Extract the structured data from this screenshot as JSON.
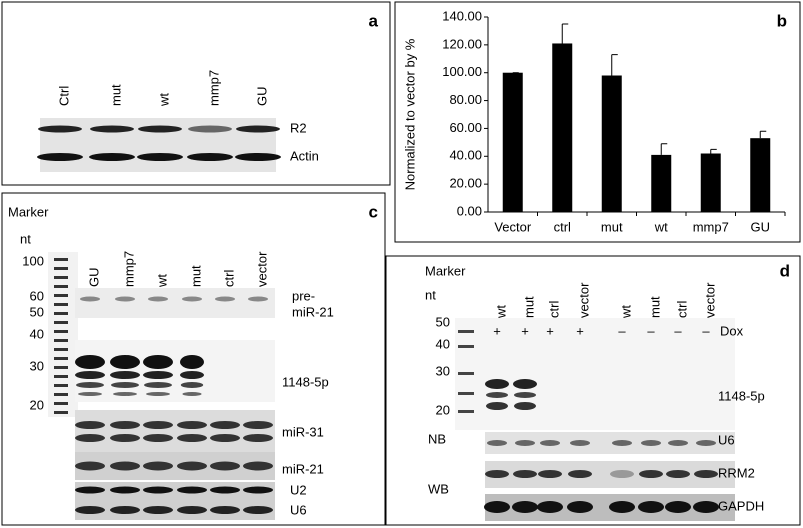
{
  "panel_a": {
    "letter": "a",
    "lanes": [
      "Ctrl",
      "mut",
      "wt",
      "mmp7",
      "GU"
    ],
    "bands": [
      "R2",
      "Actin"
    ]
  },
  "chart_data": {
    "type": "bar",
    "letter": "b",
    "y_label": "Normalized to vector by %",
    "categories": [
      "Vector",
      "ctrl",
      "mut",
      "wt",
      "mmp7",
      "GU"
    ],
    "values": [
      100,
      121,
      98,
      41,
      42,
      53
    ],
    "errors": [
      0,
      14,
      15,
      8,
      3,
      5
    ],
    "color": "#000000",
    "ylim": [
      0,
      140
    ],
    "yticks": [
      {
        "value": 0,
        "label": "0.00"
      },
      {
        "value": 20,
        "label": "20.00"
      },
      {
        "value": 40,
        "label": "40.00"
      },
      {
        "value": 60,
        "label": "60.00"
      },
      {
        "value": 80,
        "label": "80.00"
      },
      {
        "value": 100,
        "label": "100.00"
      },
      {
        "value": 120,
        "label": "120.00"
      },
      {
        "value": 140,
        "label": "140.00"
      }
    ]
  },
  "panel_c": {
    "letter": "c",
    "marker": "Marker",
    "unit": "nt",
    "sizes": [
      "100",
      "60",
      "50",
      "40",
      "30",
      "20"
    ],
    "lanes": [
      "GU",
      "mmp7",
      "wt",
      "mut",
      "ctrl",
      "vector"
    ],
    "pre_label": [
      "pre-",
      "miR-21"
    ],
    "bands": [
      "1148-5p",
      "miR-31",
      "miR-21",
      "U2",
      "U6"
    ]
  },
  "panel_d": {
    "letter": "d",
    "marker": "Marker",
    "unit": "nt",
    "sizes": [
      "50",
      "40",
      "30",
      "20"
    ],
    "lanes": [
      "wt",
      "mut",
      "ctrl",
      "vector",
      "wt",
      "mut",
      "ctrl",
      "vector"
    ],
    "dox_signs": [
      "+",
      "+",
      "+",
      "+",
      "–",
      "–",
      "–",
      "–"
    ],
    "dox": "Dox",
    "bands": [
      "1148-5p",
      "U6",
      "RRM2",
      "GAPDH"
    ],
    "groups": [
      "NB",
      "WB"
    ]
  }
}
